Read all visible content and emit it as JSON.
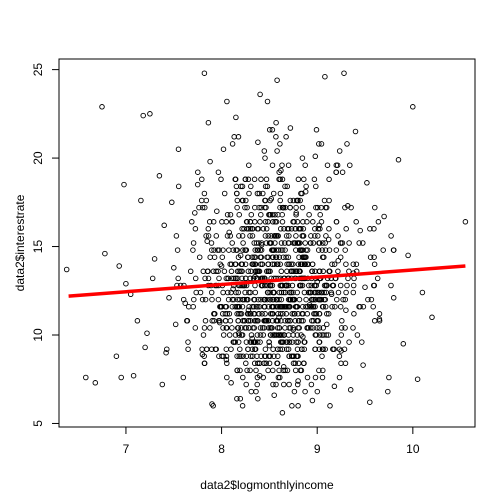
{
  "chart_data": {
    "type": "scatter",
    "title": "",
    "xlabel": "data2$logmonthlyincome",
    "ylabel": "data2$interestrate",
    "xlim": [
      6.3,
      10.65
    ],
    "ylim": [
      4.8,
      25.6
    ],
    "xticks": [
      7,
      8,
      9,
      10
    ],
    "yticks": [
      5,
      10,
      15,
      20,
      25
    ],
    "grid": false,
    "legend": "none",
    "point_color": "#000000",
    "series": [
      {
        "kind": "points",
        "x": [
          6.38,
          6.58,
          6.68,
          6.75,
          6.78,
          6.9,
          6.93,
          6.95,
          6.98,
          7.0,
          7.05,
          7.08,
          7.12,
          7.18,
          7.2,
          7.22,
          7.25,
          7.28,
          7.3,
          7.35,
          7.38,
          7.4,
          7.42,
          7.45,
          7.48,
          7.5,
          7.52,
          7.55,
          7.6,
          7.62,
          7.65,
          7.7,
          7.72,
          7.75,
          7.78,
          7.8,
          7.82,
          7.85,
          7.88,
          7.9,
          7.92,
          7.95,
          7.98,
          8.0,
          8.02,
          8.05,
          8.08,
          8.1,
          8.12,
          8.15,
          8.18,
          8.2,
          8.22,
          8.25,
          8.28,
          8.3,
          8.32,
          8.35,
          8.38,
          8.4,
          8.42,
          8.45,
          8.48,
          8.5,
          8.52,
          8.55,
          8.58,
          8.6,
          8.62,
          8.65,
          8.68,
          8.7,
          8.72,
          8.75,
          8.78,
          8.8,
          8.82,
          8.85,
          8.88,
          8.9,
          8.92,
          8.95,
          8.98,
          9.0,
          9.02,
          9.05,
          9.08,
          9.1,
          9.12,
          9.15,
          9.18,
          9.2,
          9.22,
          9.25,
          9.28,
          9.3,
          9.32,
          9.35,
          9.38,
          9.4,
          9.42,
          9.45,
          9.48,
          9.5,
          9.52,
          9.55,
          9.6,
          9.65,
          9.7,
          9.75,
          9.8,
          9.85,
          9.9,
          9.95,
          10.0,
          10.05,
          10.1,
          10.2,
          10.55
        ],
        "y": [
          13.7,
          7.6,
          7.3,
          22.9,
          14.6,
          8.8,
          13.9,
          7.6,
          18.5,
          12.9,
          12.3,
          7.7,
          10.8,
          22.4,
          9.3,
          10.1,
          22.5,
          13.2,
          14.3,
          19.0,
          7.2,
          16.2,
          9.0,
          12.1,
          17.5,
          13.8,
          10.6,
          20.5,
          7.6,
          11.8,
          9.2,
          14.8,
          16.9,
          18.5,
          12.4,
          8.9,
          24.8,
          15.3,
          19.8,
          6.1,
          11.2,
          17.0,
          10.7,
          13.9,
          20.5,
          8.6,
          15.8,
          7.3,
          12.6,
          22.3,
          10.1,
          14.5,
          6.0,
          18.8,
          11.4,
          16.4,
          9.8,
          13.3,
          20.9,
          7.7,
          15.1,
          12.0,
          23.2,
          9.4,
          17.7,
          6.6,
          14.0,
          11.0,
          19.3,
          8.2,
          15.6,
          12.8,
          21.7,
          10.3,
          16.9,
          7.4,
          13.6,
          9.9,
          18.1,
          14.8,
          11.7,
          6.3,
          20.1,
          13.0,
          16.2,
          8.8,
          24.6,
          10.6,
          15.4,
          12.3,
          7.1,
          19.6,
          14.2,
          9.1,
          24.8,
          11.4,
          17.3,
          6.9,
          13.5,
          21.5,
          10.0,
          15.9,
          8.3,
          12.7,
          18.6,
          6.2,
          14.0,
          10.9,
          16.7,
          7.6,
          12.1,
          19.9,
          9.5,
          14.5,
          22.9,
          7.5,
          12.4,
          11.0,
          16.4
        ],
        "density_hint": "dense cloud between x 7.6 and 9.9, y 6 to 21"
      },
      {
        "kind": "regression_line",
        "color": "#ff0000",
        "x": [
          6.4,
          10.55
        ],
        "y": [
          12.2,
          13.9
        ]
      }
    ]
  }
}
